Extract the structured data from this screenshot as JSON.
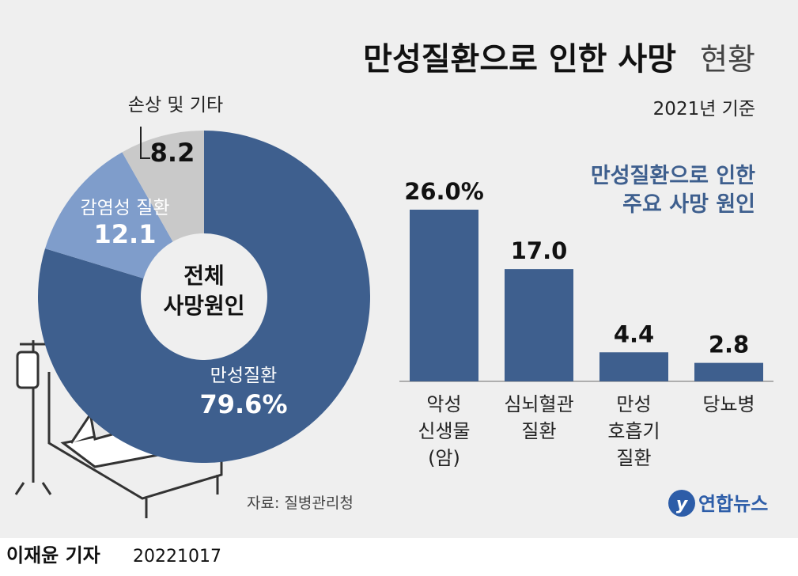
{
  "header": {
    "title": "만성질환으로 인한 사망",
    "title_suffix": "현황",
    "subtitle": "2021년 기준"
  },
  "chart_data": [
    {
      "type": "pie",
      "center_label": "전체\n사망원인",
      "categories": [
        "만성질환",
        "감염성 질환",
        "손상 및 기타"
      ],
      "values": [
        79.6,
        12.1,
        8.2
      ],
      "value_labels": [
        "79.6%",
        "12.1",
        "8.2"
      ],
      "colors": [
        "#3e5f8e",
        "#7f9dcb",
        "#c9c9c9"
      ]
    },
    {
      "type": "bar",
      "title": "만성질환으로 인한\n주요 사망 원인",
      "categories": [
        "악성\n신생물\n(암)",
        "심뇌혈관\n질환",
        "만성\n호흡기\n질환",
        "당뇨병"
      ],
      "values": [
        26.0,
        17.0,
        4.4,
        2.8
      ],
      "value_labels": [
        "26.0%",
        "17.0",
        "4.4",
        "2.8"
      ],
      "color": "#3e5f8e"
    }
  ],
  "source": "자료: 질병관리청",
  "logo": "연합뉴스",
  "footer": {
    "byline": "이재윤 기자",
    "date": "20221017"
  }
}
